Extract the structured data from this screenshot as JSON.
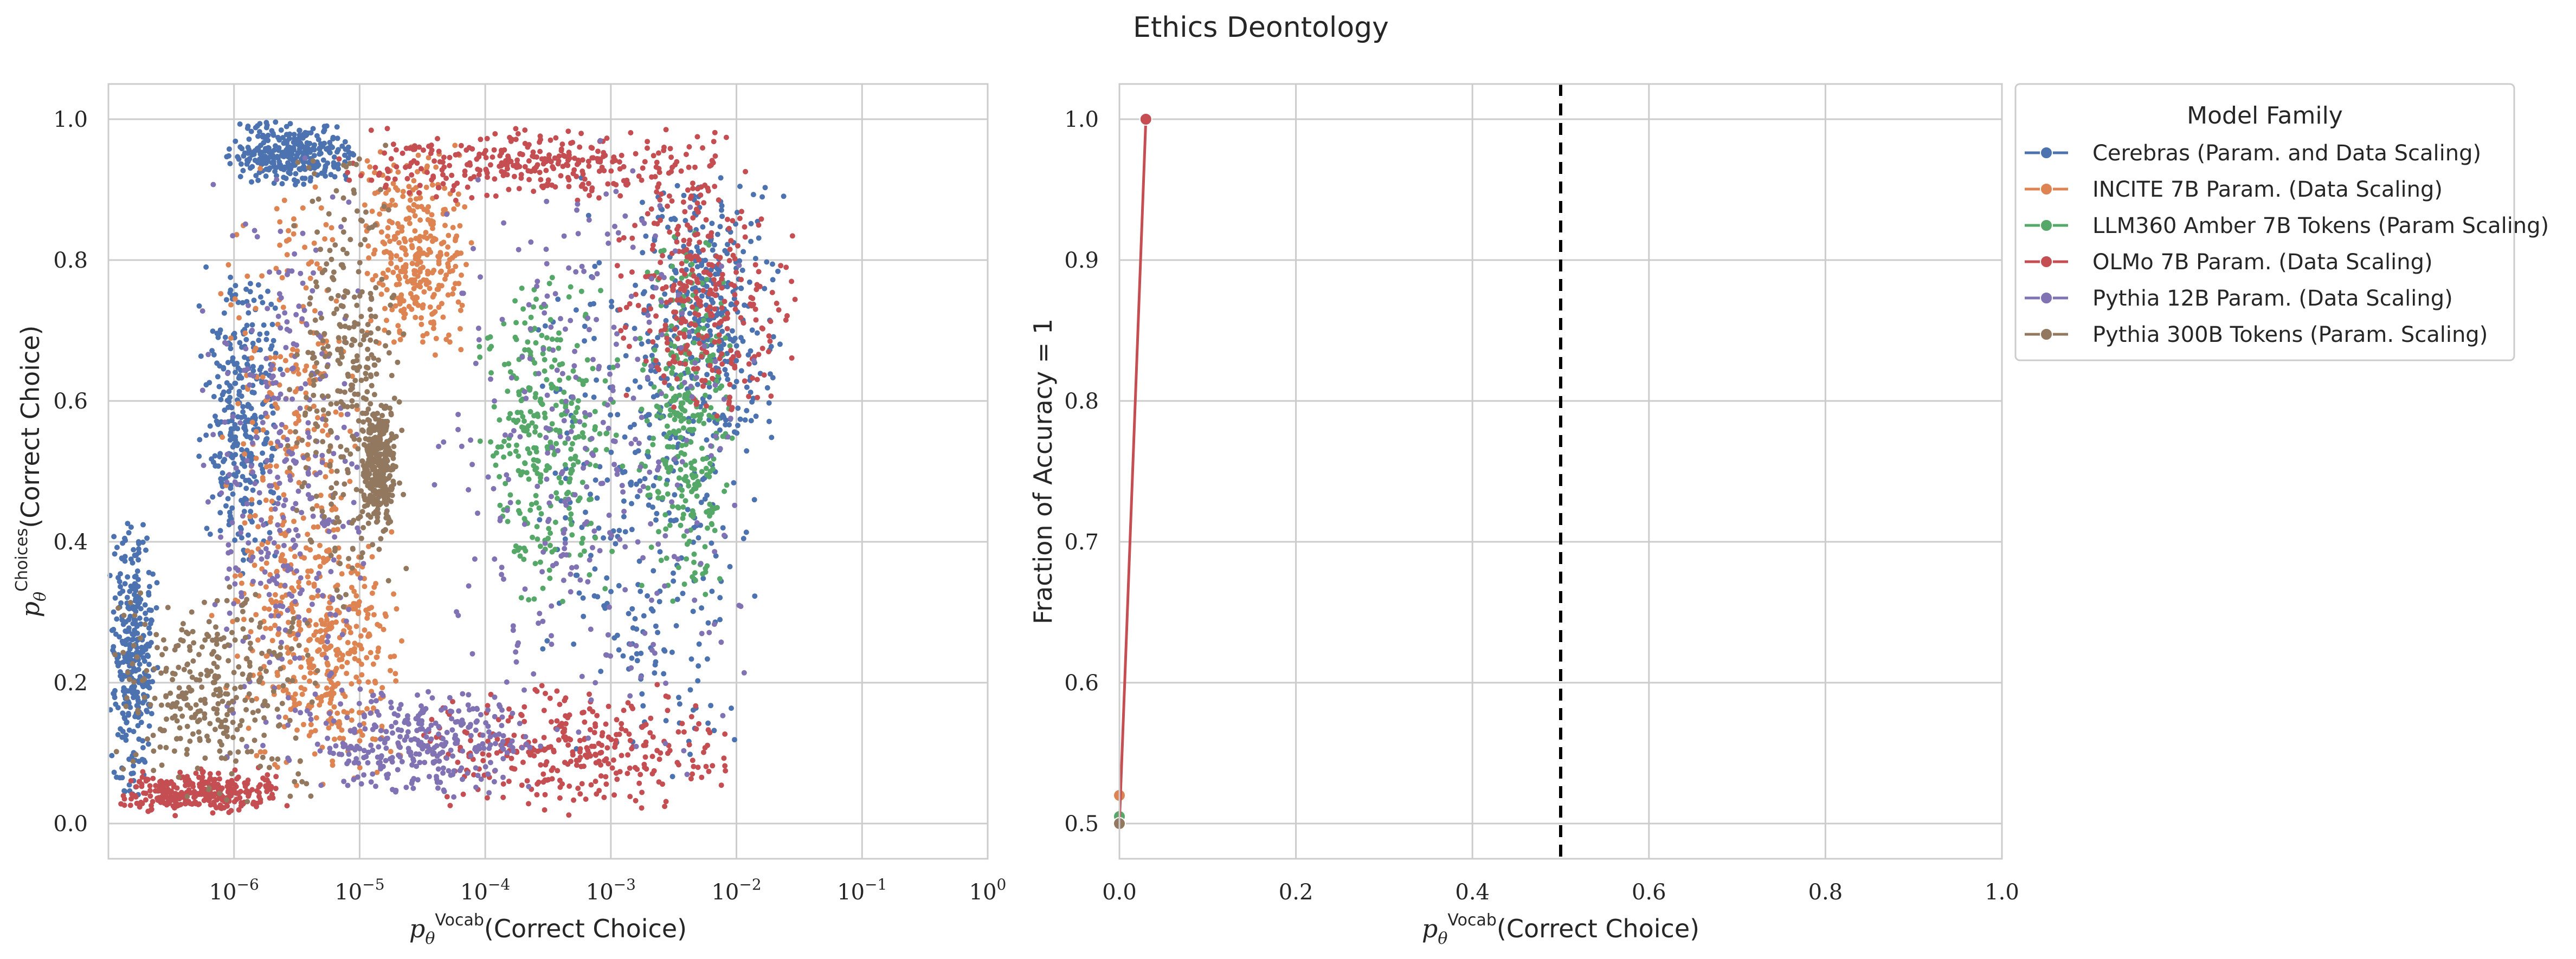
{
  "figure": {
    "title": "Ethics Deontology"
  },
  "legend": {
    "title": "Model Family",
    "placement": "outside-right"
  },
  "series_styles": [
    {
      "name": "Cerebras (Param. and Data Scaling)",
      "color": "#4c72b0"
    },
    {
      "name": "INCITE 7B Param. (Data Scaling)",
      "color": "#dd8452"
    },
    {
      "name": "LLM360 Amber 7B Tokens (Param Scaling)",
      "color": "#55a868"
    },
    {
      "name": "OLMo 7B Param. (Data Scaling)",
      "color": "#c44e52"
    },
    {
      "name": "Pythia 12B Param. (Data Scaling)",
      "color": "#8172b3"
    },
    {
      "name": "Pythia 300B Tokens (Param. Scaling)",
      "color": "#937860"
    }
  ],
  "chart_data": [
    {
      "type": "scatter",
      "xlabel": "p_θ^Vocab(Correct Choice)",
      "ylabel": "p_θ^Choices(Correct Choice)",
      "xscale": "log",
      "xlim": [
        1e-07,
        1.0
      ],
      "ylim": [
        -0.05,
        1.05
      ],
      "x_ticks": [
        "10^-6",
        "10^-5",
        "10^-4",
        "10^-3",
        "10^-2",
        "10^-1",
        "10^0"
      ],
      "y_ticks": [
        "0.0",
        "0.2",
        "0.4",
        "0.6",
        "0.8",
        "1.0"
      ],
      "grid": true,
      "series": [
        {
          "name": "Cerebras (Param. and Data Scaling)",
          "clusters": [
            {
              "x_log10": [
                -7.0,
                -6.6
              ],
              "y": [
                0.02,
                0.45
              ]
            },
            {
              "x_log10": [
                -6.3,
                -5.6
              ],
              "y": [
                0.35,
                0.8
              ]
            },
            {
              "x_log10": [
                -6.1,
                -5.0
              ],
              "y": [
                0.9,
                1.0
              ]
            },
            {
              "x_log10": [
                -3.6,
                -1.8
              ],
              "y": [
                0.02,
                0.95
              ]
            },
            {
              "x_log10": [
                -2.8,
                -1.6
              ],
              "y": [
                0.5,
                0.95
              ]
            }
          ]
        },
        {
          "name": "INCITE 7B Param. (Data Scaling)",
          "clusters": [
            {
              "x_log10": [
                -6.2,
                -4.9
              ],
              "y": [
                0.02,
                0.98
              ]
            },
            {
              "x_log10": [
                -5.0,
                -4.1
              ],
              "y": [
                0.65,
                0.97
              ]
            },
            {
              "x_log10": [
                -5.8,
                -4.6
              ],
              "y": [
                0.05,
                0.45
              ]
            }
          ]
        },
        {
          "name": "LLM360 Amber 7B Tokens (Param Scaling)",
          "clusters": [
            {
              "x_log10": [
                -4.1,
                -2.9
              ],
              "y": [
                0.3,
                0.8
              ]
            },
            {
              "x_log10": [
                -2.8,
                -2.0
              ],
              "y": [
                0.3,
                0.85
              ]
            }
          ]
        },
        {
          "name": "OLMo 7B Param. (Data Scaling)",
          "clusters": [
            {
              "x_log10": [
                -5.2,
                -2.0
              ],
              "y": [
                0.88,
                0.99
              ]
            },
            {
              "x_log10": [
                -3.0,
                -1.5
              ],
              "y": [
                0.55,
                0.95
              ]
            },
            {
              "x_log10": [
                -4.6,
                -1.9
              ],
              "y": [
                0.01,
                0.2
              ]
            },
            {
              "x_log10": [
                -7.0,
                -5.5
              ],
              "y": [
                0.01,
                0.08
              ]
            }
          ]
        },
        {
          "name": "Pythia 12B Param. (Data Scaling)",
          "clusters": [
            {
              "x_log10": [
                -4.5,
                -1.8
              ],
              "y": [
                0.05,
                0.98
              ]
            },
            {
              "x_log10": [
                -5.5,
                -3.5
              ],
              "y": [
                0.03,
                0.2
              ]
            },
            {
              "x_log10": [
                -6.3,
                -4.9
              ],
              "y": [
                0.05,
                0.95
              ]
            }
          ]
        },
        {
          "name": "Pythia 300B Tokens (Param. Scaling)",
          "clusters": [
            {
              "x_log10": [
                -7.0,
                -5.3
              ],
              "y": [
                0.02,
                0.35
              ]
            },
            {
              "x_log10": [
                -5.6,
                -4.6
              ],
              "y": [
                0.3,
                0.98
              ]
            },
            {
              "x_log10": [
                -5.0,
                -4.7
              ],
              "y": [
                0.42,
                0.6
              ]
            }
          ]
        }
      ]
    },
    {
      "type": "line",
      "xlabel": "p_θ^Vocab(Correct Choice)",
      "ylabel": "Fraction of Accuracy = 1",
      "xlim": [
        0.0,
        1.0
      ],
      "ylim": [
        0.475,
        1.025
      ],
      "x_ticks": [
        "0.0",
        "0.2",
        "0.4",
        "0.6",
        "0.8",
        "1.0"
      ],
      "y_ticks": [
        "0.5",
        "0.6",
        "0.7",
        "0.8",
        "0.9",
        "1.0"
      ],
      "grid": true,
      "vline": {
        "x": 0.5,
        "style": "dashed",
        "color": "#000000"
      },
      "series": [
        {
          "name": "Cerebras (Param. and Data Scaling)",
          "x": [
            0.0
          ],
          "y": [
            0.5
          ]
        },
        {
          "name": "INCITE 7B Param. (Data Scaling)",
          "x": [
            0.0
          ],
          "y": [
            0.52
          ]
        },
        {
          "name": "LLM360 Amber 7B Tokens (Param Scaling)",
          "x": [
            0.0
          ],
          "y": [
            0.505
          ]
        },
        {
          "name": "OLMo 7B Param. (Data Scaling)",
          "x": [
            0.0,
            0.03
          ],
          "y": [
            0.5,
            1.0
          ]
        },
        {
          "name": "Pythia 12B Param. (Data Scaling)",
          "x": [
            0.0
          ],
          "y": [
            0.5
          ]
        },
        {
          "name": "Pythia 300B Tokens (Param. Scaling)",
          "x": [
            0.0
          ],
          "y": [
            0.5
          ]
        }
      ]
    }
  ]
}
